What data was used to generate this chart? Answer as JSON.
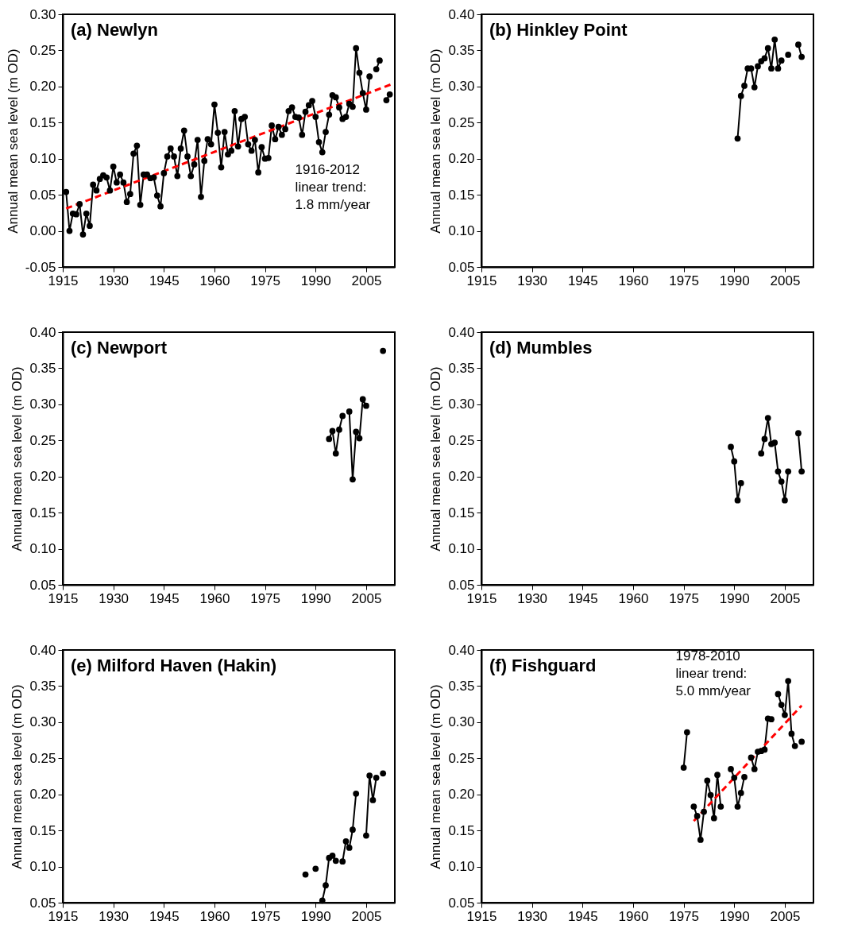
{
  "chart_data": [
    {
      "type": "line",
      "title": "(a) Newlyn",
      "ylabel": "Annual mean sea level (m OD)",
      "marker": "circle",
      "line_style": "solid",
      "annotations": [
        "1916-2012\nlinear trend:\n1.8 mm/year"
      ],
      "xlim": [
        1915,
        2013.5
      ],
      "xticks": [
        1915,
        1930,
        1945,
        1960,
        1975,
        1990,
        2005
      ],
      "ylim": [
        -0.05,
        0.3
      ],
      "yticks": [
        {
          "value": -0.05,
          "label": "-0.05"
        },
        {
          "value": 0,
          "label": "0.00"
        },
        {
          "value": 0.05,
          "label": "0.05"
        },
        {
          "value": 0.1,
          "label": "0.10"
        },
        {
          "value": 0.15,
          "label": "0.15"
        },
        {
          "value": 0.2,
          "label": "0.20"
        },
        {
          "value": 0.25,
          "label": "0.25"
        },
        {
          "value": 0.3,
          "label": "0.30"
        }
      ],
      "series": [
        {
          "color": "#000000",
          "x": [
            1916,
            1917,
            1918,
            1919,
            1920,
            1921,
            1922,
            1923,
            1924,
            1925,
            1926,
            1927,
            1928,
            1929,
            1930,
            1931,
            1932,
            1933,
            1934,
            1935,
            1936,
            1937,
            1938,
            1939,
            1940,
            1941,
            1942,
            1943,
            1944,
            1945,
            1946,
            1947,
            1948,
            1949,
            1950,
            1951,
            1952,
            1953,
            1954,
            1955,
            1956,
            1957,
            1958,
            1959,
            1960,
            1961,
            1962,
            1963,
            1964,
            1965,
            1966,
            1967,
            1968,
            1969,
            1970,
            1971,
            1972,
            1973,
            1974,
            1975,
            1976,
            1977,
            1978,
            1979,
            1980,
            1981,
            1982,
            1983,
            1984,
            1985,
            1986,
            1987,
            1988,
            1989,
            1990,
            1991,
            1992,
            1993,
            1994,
            1995,
            1996,
            1997,
            1998,
            1999,
            2000,
            2001,
            2002,
            2003,
            2004,
            2005,
            2006,
            2007,
            2008,
            2009,
            2010,
            2011,
            2012
          ],
          "values": [
            0.054,
            0.0,
            0.024,
            0.023,
            0.037,
            -0.005,
            0.024,
            0.007,
            0.064,
            0.056,
            0.072,
            0.077,
            0.074,
            0.056,
            0.089,
            0.067,
            0.078,
            0.067,
            0.04,
            0.051,
            0.107,
            0.118,
            0.036,
            0.078,
            0.078,
            0.073,
            0.074,
            0.049,
            0.034,
            0.08,
            0.103,
            0.114,
            0.103,
            0.076,
            0.114,
            0.139,
            0.103,
            0.076,
            0.092,
            0.126,
            0.047,
            0.097,
            0.127,
            0.12,
            0.175,
            0.136,
            0.088,
            0.137,
            0.106,
            0.111,
            0.166,
            0.117,
            0.155,
            0.158,
            0.12,
            0.111,
            0.126,
            0.081,
            0.116,
            0.1,
            0.101,
            0.146,
            0.127,
            0.144,
            0.133,
            0.141,
            0.166,
            0.171,
            0.158,
            0.157,
            0.133,
            0.165,
            0.174,
            0.18,
            0.158,
            0.123,
            0.109,
            0.137,
            0.161,
            0.188,
            0.185,
            0.171,
            0.155,
            0.158,
            0.176,
            0.172,
            0.253,
            0.219,
            0.191,
            0.168,
            0.214,
            null,
            0.224,
            0.236,
            null,
            0.181,
            0.189
          ]
        },
        {
          "type": "line",
          "color": "#ff0000",
          "line_style": "dashed",
          "marker": "none",
          "x": [
            1916,
            2013
          ],
          "values": [
            0.031,
            0.204
          ]
        }
      ]
    },
    {
      "type": "line",
      "title": "(b) Hinkley Point",
      "ylabel": "Annual mean sea level (m OD)",
      "marker": "circle",
      "line_style": "solid",
      "xlim": [
        1915,
        2013.5
      ],
      "xticks": [
        1915,
        1930,
        1945,
        1960,
        1975,
        1990,
        2005
      ],
      "ylim": [
        0.05,
        0.4
      ],
      "yticks": [
        {
          "value": 0.05,
          "label": "0.05"
        },
        {
          "value": 0.1,
          "label": "0.10"
        },
        {
          "value": 0.15,
          "label": "0.15"
        },
        {
          "value": 0.2,
          "label": "0.20"
        },
        {
          "value": 0.25,
          "label": "0.25"
        },
        {
          "value": 0.3,
          "label": "0.30"
        },
        {
          "value": 0.35,
          "label": "0.35"
        },
        {
          "value": 0.4,
          "label": "0.40"
        }
      ],
      "series": [
        {
          "color": "#000000",
          "x": [
            1991,
            1992,
            1993,
            1994,
            1995,
            1996,
            1997,
            1998,
            1999,
            2000,
            2001,
            2002,
            2003,
            2004,
            2005,
            2006,
            2007,
            2008,
            2009,
            2010
          ],
          "values": [
            0.228,
            0.287,
            0.301,
            0.325,
            0.325,
            0.299,
            0.328,
            0.335,
            0.339,
            0.353,
            0.325,
            0.365,
            0.325,
            0.336,
            null,
            0.344,
            null,
            null,
            0.358,
            0.341
          ]
        }
      ]
    },
    {
      "type": "line",
      "title": "(c) Newport",
      "ylabel": "Annual mean sea level (m OD)",
      "marker": "circle",
      "line_style": "solid",
      "xlim": [
        1915,
        2013.5
      ],
      "xticks": [
        1915,
        1930,
        1945,
        1960,
        1975,
        1990,
        2005
      ],
      "ylim": [
        0.05,
        0.4
      ],
      "yticks": [
        {
          "value": 0.05,
          "label": "0.05"
        },
        {
          "value": 0.1,
          "label": "0.10"
        },
        {
          "value": 0.15,
          "label": "0.15"
        },
        {
          "value": 0.2,
          "label": "0.20"
        },
        {
          "value": 0.25,
          "label": "0.25"
        },
        {
          "value": 0.3,
          "label": "0.30"
        },
        {
          "value": 0.35,
          "label": "0.35"
        },
        {
          "value": 0.4,
          "label": "0.40"
        }
      ],
      "series": [
        {
          "color": "#000000",
          "x": [
            1994,
            1995,
            1996,
            1997,
            1998,
            1999,
            2000,
            2001,
            2002,
            2003,
            2004,
            2005,
            2006,
            2007,
            2008,
            2009,
            2010
          ],
          "values": [
            0.252,
            0.263,
            0.232,
            0.265,
            0.284,
            null,
            0.29,
            0.196,
            0.262,
            0.253,
            0.307,
            0.298,
            null,
            null,
            null,
            null,
            0.374
          ]
        }
      ]
    },
    {
      "type": "line",
      "title": "(d) Mumbles",
      "ylabel": "Annual mean sea level (m OD)",
      "marker": "circle",
      "line_style": "solid",
      "xlim": [
        1915,
        2013.5
      ],
      "xticks": [
        1915,
        1930,
        1945,
        1960,
        1975,
        1990,
        2005
      ],
      "ylim": [
        0.05,
        0.4
      ],
      "yticks": [
        {
          "value": 0.05,
          "label": "0.05"
        },
        {
          "value": 0.1,
          "label": "0.10"
        },
        {
          "value": 0.15,
          "label": "0.15"
        },
        {
          "value": 0.2,
          "label": "0.20"
        },
        {
          "value": 0.25,
          "label": "0.25"
        },
        {
          "value": 0.3,
          "label": "0.30"
        },
        {
          "value": 0.35,
          "label": "0.35"
        },
        {
          "value": 0.4,
          "label": "0.40"
        }
      ],
      "series": [
        {
          "color": "#000000",
          "x": [
            1989,
            1990,
            1991,
            1992,
            1993,
            1994,
            1995,
            1996,
            1997,
            1998,
            1999,
            2000,
            2001,
            2002,
            2003,
            2004,
            2005,
            2006,
            2007,
            2008,
            2009,
            2010
          ],
          "values": [
            0.241,
            0.221,
            0.167,
            0.191,
            null,
            null,
            null,
            null,
            null,
            0.232,
            0.252,
            0.281,
            0.245,
            0.247,
            0.207,
            0.193,
            0.167,
            0.207,
            null,
            null,
            0.26,
            0.207
          ]
        }
      ]
    },
    {
      "type": "line",
      "title": "(e) Milford Haven (Hakin)",
      "ylabel": "Annual mean sea level (m OD)",
      "marker": "circle",
      "line_style": "solid",
      "xlim": [
        1915,
        2013.5
      ],
      "xticks": [
        1915,
        1930,
        1945,
        1960,
        1975,
        1990,
        2005
      ],
      "ylim": [
        0.05,
        0.4
      ],
      "yticks": [
        {
          "value": 0.05,
          "label": "0.05"
        },
        {
          "value": 0.1,
          "label": "0.10"
        },
        {
          "value": 0.15,
          "label": "0.15"
        },
        {
          "value": 0.2,
          "label": "0.20"
        },
        {
          "value": 0.25,
          "label": "0.25"
        },
        {
          "value": 0.3,
          "label": "0.30"
        },
        {
          "value": 0.35,
          "label": "0.35"
        },
        {
          "value": 0.4,
          "label": "0.40"
        }
      ],
      "series": [
        {
          "color": "#000000",
          "x": [
            1987,
            1988,
            1989,
            1990,
            1991,
            1992,
            1993,
            1994,
            1995,
            1996,
            1997,
            1998,
            1999,
            2000,
            2001,
            2002,
            2003,
            2004,
            2005,
            2006,
            2007,
            2008,
            2009,
            2010
          ],
          "values": [
            0.089,
            null,
            null,
            0.097,
            null,
            0.053,
            0.074,
            0.112,
            0.115,
            0.108,
            null,
            0.107,
            0.135,
            0.126,
            0.151,
            0.201,
            null,
            null,
            0.143,
            0.226,
            0.192,
            0.223,
            null,
            0.229
          ]
        }
      ]
    },
    {
      "type": "line",
      "title": "(f) Fishguard",
      "ylabel": "Annual mean sea level (m OD)",
      "marker": "circle",
      "line_style": "solid",
      "annotations": [
        "1978-2010\nlinear trend:\n5.0 mm/year"
      ],
      "xlim": [
        1915,
        2013.5
      ],
      "xticks": [
        1915,
        1930,
        1945,
        1960,
        1975,
        1990,
        2005
      ],
      "ylim": [
        0.05,
        0.4
      ],
      "yticks": [
        {
          "value": 0.05,
          "label": "0.05"
        },
        {
          "value": 0.1,
          "label": "0.10"
        },
        {
          "value": 0.15,
          "label": "0.15"
        },
        {
          "value": 0.2,
          "label": "0.20"
        },
        {
          "value": 0.25,
          "label": "0.25"
        },
        {
          "value": 0.3,
          "label": "0.30"
        },
        {
          "value": 0.35,
          "label": "0.35"
        },
        {
          "value": 0.4,
          "label": "0.40"
        }
      ],
      "series": [
        {
          "color": "#000000",
          "x": [
            1975,
            1976,
            1977,
            1978,
            1979,
            1980,
            1981,
            1982,
            1983,
            1984,
            1985,
            1986,
            1987,
            1988,
            1989,
            1990,
            1991,
            1992,
            1993,
            1994,
            1995,
            1996,
            1997,
            1998,
            1999,
            2000,
            2001,
            2002,
            2003,
            2004,
            2005,
            2006,
            2007,
            2008,
            2009,
            2010
          ],
          "values": [
            0.237,
            0.286,
            null,
            0.183,
            0.17,
            0.137,
            0.176,
            0.219,
            0.199,
            0.167,
            0.227,
            0.183,
            null,
            null,
            0.235,
            0.223,
            0.183,
            0.202,
            0.224,
            null,
            0.251,
            0.235,
            0.259,
            0.26,
            0.262,
            0.305,
            0.304,
            null,
            0.339,
            0.324,
            0.31,
            0.357,
            0.284,
            0.267,
            null,
            0.273
          ]
        },
        {
          "type": "line",
          "color": "#ff0000",
          "line_style": "dashed",
          "marker": "none",
          "x": [
            1978,
            2010
          ],
          "values": [
            0.163,
            0.323
          ]
        }
      ]
    }
  ]
}
